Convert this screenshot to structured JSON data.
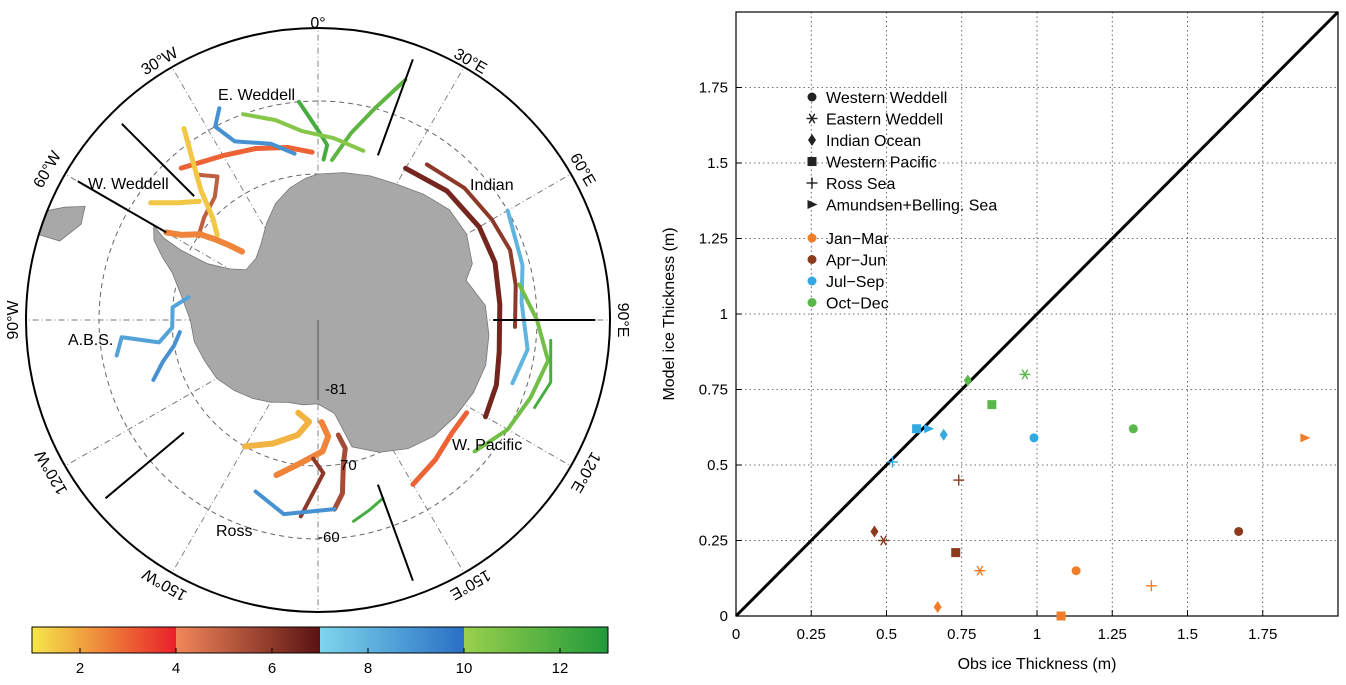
{
  "chart_data": [
    {
      "type": "map",
      "projection": "south-polar-stereographic",
      "longitude_labels": [
        "0°",
        "30°E",
        "60°E",
        "90°E",
        "120°E",
        "150°E",
        "150°W",
        "120°W",
        "90°W",
        "60°W",
        "30°W"
      ],
      "latitude_labels": [
        "-60",
        "70",
        "-81"
      ],
      "region_labels": [
        "E. Weddell",
        "W. Weddell",
        "Indian",
        "A.B.S.",
        "W. Pacific",
        "Ross"
      ],
      "region_boundaries_lon": [
        -45,
        20,
        90,
        160,
        -130,
        -60
      ],
      "colorbar": {
        "ticks": [
          2,
          4,
          6,
          8,
          10,
          12
        ],
        "range": [
          1,
          13
        ],
        "groups": [
          {
            "range": [
              1,
              4
            ],
            "colors": [
              "#f4e84a",
              "#e9202a"
            ]
          },
          {
            "range": [
              4,
              7
            ],
            "colors": [
              "#f2865a",
              "#5a1212"
            ]
          },
          {
            "range": [
              7,
              10
            ],
            "colors": [
              "#7dd6ec",
              "#2a6fc4"
            ]
          },
          {
            "range": [
              10,
              13
            ],
            "colors": [
              "#9ad04c",
              "#219a3a"
            ]
          }
        ]
      }
    },
    {
      "type": "scatter",
      "xlabel": "Obs ice Thickness (m)",
      "ylabel": "Model ice Thickness (m)",
      "xlim": [
        0,
        2
      ],
      "ylim": [
        0,
        2
      ],
      "xticks": [
        "0",
        "0.25",
        "0.5",
        "0.75",
        "1",
        "1.25",
        "1.5",
        "1.75"
      ],
      "yticks": [
        "0",
        "0.25",
        "0.5",
        "0.75",
        "1",
        "1.25",
        "1.5",
        "1.75"
      ],
      "grid": true,
      "one_to_one_line": true,
      "legend_placement": "top-left",
      "marker_legend": [
        {
          "label": "Western Weddell",
          "marker": "circle"
        },
        {
          "label": "Eastern Weddell",
          "marker": "asterisk"
        },
        {
          "label": "Indian Ocean",
          "marker": "diamond"
        },
        {
          "label": "Western Pacific",
          "marker": "square"
        },
        {
          "label": "Ross Sea",
          "marker": "plus"
        },
        {
          "label": "Amundsen+Belling. Sea",
          "marker": "triangle"
        }
      ],
      "color_legend": [
        {
          "label": "Jan−Mar",
          "color": "#f07d2a"
        },
        {
          "label": "Apr−Jun",
          "color": "#8c3a1e"
        },
        {
          "label": "Jul−Sep",
          "color": "#34a8e0"
        },
        {
          "label": "Oct−Dec",
          "color": "#5ab84a"
        }
      ],
      "points": [
        {
          "x": 1.13,
          "y": 0.15,
          "marker": "circle",
          "season": "Jan−Mar"
        },
        {
          "x": 0.81,
          "y": 0.15,
          "marker": "asterisk",
          "season": "Jan−Mar"
        },
        {
          "x": 0.67,
          "y": 0.03,
          "marker": "diamond",
          "season": "Jan−Mar"
        },
        {
          "x": 1.08,
          "y": 0.0,
          "marker": "square",
          "season": "Jan−Mar"
        },
        {
          "x": 1.38,
          "y": 0.1,
          "marker": "plus",
          "season": "Jan−Mar"
        },
        {
          "x": 1.89,
          "y": 0.59,
          "marker": "triangle",
          "season": "Jan−Mar"
        },
        {
          "x": 1.67,
          "y": 0.28,
          "marker": "circle",
          "season": "Apr−Jun"
        },
        {
          "x": 0.49,
          "y": 0.25,
          "marker": "asterisk",
          "season": "Apr−Jun"
        },
        {
          "x": 0.46,
          "y": 0.28,
          "marker": "diamond",
          "season": "Apr−Jun"
        },
        {
          "x": 0.73,
          "y": 0.21,
          "marker": "square",
          "season": "Apr−Jun"
        },
        {
          "x": 0.74,
          "y": 0.45,
          "marker": "plus",
          "season": "Apr−Jun"
        },
        {
          "x": 0.99,
          "y": 0.59,
          "marker": "circle",
          "season": "Jul−Sep"
        },
        {
          "x": 0.69,
          "y": 0.6,
          "marker": "diamond",
          "season": "Jul−Sep"
        },
        {
          "x": 0.6,
          "y": 0.62,
          "marker": "square",
          "season": "Jul−Sep"
        },
        {
          "x": 0.52,
          "y": 0.51,
          "marker": "plus",
          "season": "Jul−Sep"
        },
        {
          "x": 0.64,
          "y": 0.62,
          "marker": "triangle",
          "season": "Jul−Sep"
        },
        {
          "x": 1.32,
          "y": 0.62,
          "marker": "circle",
          "season": "Oct−Dec"
        },
        {
          "x": 0.96,
          "y": 0.8,
          "marker": "asterisk",
          "season": "Oct−Dec"
        },
        {
          "x": 0.77,
          "y": 0.78,
          "marker": "diamond",
          "season": "Oct−Dec"
        },
        {
          "x": 0.85,
          "y": 0.7,
          "marker": "square",
          "season": "Oct−Dec"
        }
      ]
    }
  ]
}
